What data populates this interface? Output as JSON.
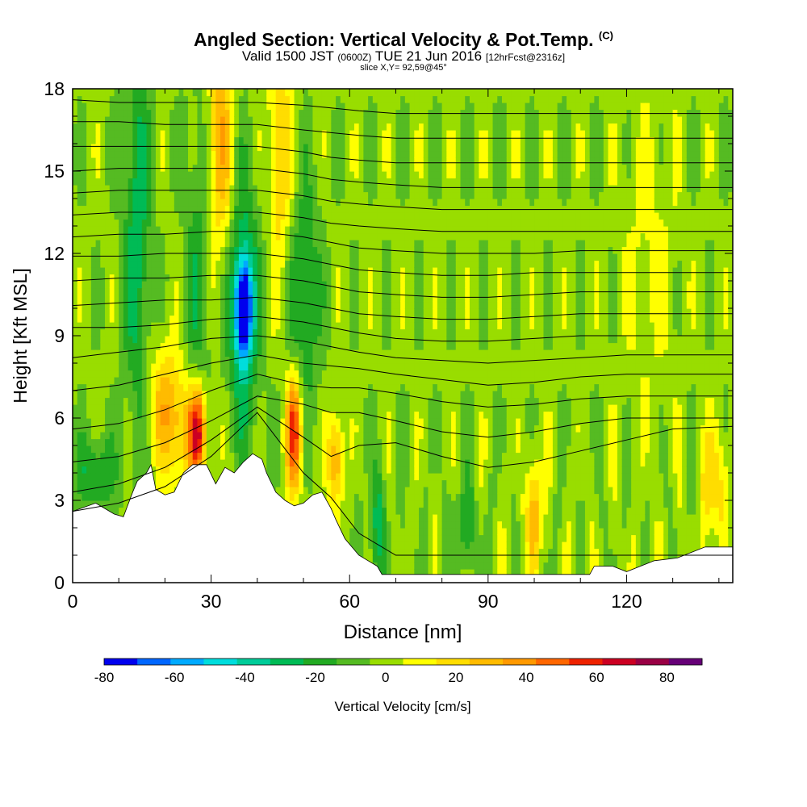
{
  "header": {
    "title": "Angled Section: Vertical Velocity & Pot.Temp.",
    "title_tag": "(C)",
    "valid_prefix": "Valid 1500 JST",
    "valid_z": "(0600Z)",
    "valid_date": "TUE 21 Jun 2016",
    "forecast": "[12hrFcst@2316z]",
    "slice": "slice X,Y= 92,59@45°"
  },
  "colors": {
    "scale": [
      "#0000ee",
      "#0066ff",
      "#00aaff",
      "#00dddd",
      "#00cc99",
      "#00bb55",
      "#22aa22",
      "#55bb22",
      "#99dd00",
      "#ffff00",
      "#ffdd00",
      "#ffbb00",
      "#ff9900",
      "#ff6600",
      "#ee2200",
      "#cc0022",
      "#990044",
      "#660077"
    ],
    "terrain": "#ffffff",
    "contour": "#000000"
  },
  "chart_data": {
    "type": "heatmap",
    "title": "Angled Section: Vertical Velocity & Pot.Temp.",
    "xlabel": "Distance [nm]",
    "ylabel": "Height [Kft MSL]",
    "xlim": [
      0,
      143
    ],
    "ylim": [
      0,
      18
    ],
    "xticks": [
      0,
      30,
      60,
      90,
      120
    ],
    "yticks": [
      0,
      3,
      6,
      9,
      12,
      15,
      18
    ],
    "colorbar": {
      "label": "Vertical Velocity [cm/s]",
      "min": -80,
      "max": 90,
      "step": 10,
      "ticks": [
        -80,
        -60,
        -40,
        -20,
        0,
        20,
        40,
        60,
        80
      ]
    },
    "terrain_top_kft": [
      [
        0,
        2.6
      ],
      [
        5,
        2.9
      ],
      [
        9,
        2.5
      ],
      [
        11,
        2.4
      ],
      [
        13,
        3.3
      ],
      [
        14,
        3.7
      ],
      [
        16,
        4.0
      ],
      [
        17,
        4.3
      ],
      [
        18,
        3.4
      ],
      [
        20,
        3.2
      ],
      [
        22,
        3.3
      ],
      [
        24,
        4.0
      ],
      [
        26,
        4.3
      ],
      [
        29,
        4.3
      ],
      [
        31,
        3.6
      ],
      [
        33,
        4.2
      ],
      [
        35,
        4.0
      ],
      [
        37,
        4.4
      ],
      [
        39,
        4.7
      ],
      [
        41,
        4.5
      ],
      [
        42,
        4.0
      ],
      [
        44,
        3.3
      ],
      [
        46,
        3.0
      ],
      [
        48,
        2.8
      ],
      [
        50,
        2.9
      ],
      [
        52,
        3.2
      ],
      [
        54,
        3.3
      ],
      [
        56,
        2.7
      ],
      [
        57,
        2.3
      ],
      [
        59,
        1.6
      ],
      [
        62,
        1.0
      ],
      [
        64,
        0.8
      ],
      [
        66,
        0.6
      ],
      [
        67,
        0.3
      ],
      [
        78,
        0.3
      ],
      [
        90,
        0.3
      ],
      [
        112,
        0.3
      ],
      [
        113,
        0.6
      ],
      [
        117,
        0.6
      ],
      [
        120,
        0.4
      ],
      [
        126,
        0.8
      ],
      [
        131,
        0.9
      ],
      [
        137,
        1.3
      ],
      [
        143,
        1.3
      ]
    ],
    "theta_contours_kft": [
      [
        2.6,
        2.9,
        3.5,
        4.6,
        6.2,
        4.0,
        3.1,
        1.8,
        1.0,
        1.0,
        1.0,
        1.0,
        1.0,
        1.0,
        1.0,
        1.0
      ],
      [
        3.3,
        3.6,
        4.2,
        5.2,
        6.4,
        5.3,
        4.6,
        5.0,
        5.1,
        4.6,
        4.2,
        4.4,
        4.8,
        5.2,
        5.6,
        5.7
      ],
      [
        4.4,
        4.6,
        5.1,
        5.9,
        6.8,
        6.5,
        6.2,
        6.2,
        5.9,
        5.5,
        5.3,
        5.5,
        5.8,
        6.0,
        6.0,
        6.0
      ],
      [
        5.6,
        5.8,
        6.3,
        7.0,
        7.6,
        7.2,
        7.1,
        7.1,
        6.9,
        6.6,
        6.4,
        6.5,
        6.7,
        6.8,
        6.8,
        6.8
      ],
      [
        7.0,
        7.2,
        7.6,
        8.0,
        8.3,
        8.0,
        7.9,
        7.8,
        7.6,
        7.4,
        7.2,
        7.3,
        7.5,
        7.6,
        7.6,
        7.6
      ],
      [
        8.2,
        8.4,
        8.6,
        8.9,
        9.0,
        8.8,
        8.6,
        8.4,
        8.2,
        8.1,
        8.0,
        8.1,
        8.2,
        8.3,
        8.3,
        8.3
      ],
      [
        9.3,
        9.3,
        9.4,
        9.6,
        9.7,
        9.5,
        9.3,
        9.1,
        8.9,
        8.8,
        8.8,
        8.9,
        9.0,
        9.0,
        9.0,
        9.0
      ],
      [
        10.1,
        10.2,
        10.3,
        10.3,
        10.4,
        10.2,
        10.0,
        9.8,
        9.7,
        9.6,
        9.6,
        9.7,
        9.8,
        9.8,
        9.8,
        9.8
      ],
      [
        11.0,
        11.1,
        11.1,
        11.2,
        11.2,
        11.0,
        10.8,
        10.6,
        10.5,
        10.4,
        10.4,
        10.5,
        10.6,
        10.6,
        10.6,
        10.6
      ],
      [
        11.9,
        11.9,
        12.0,
        12.0,
        12.0,
        11.8,
        11.6,
        11.4,
        11.3,
        11.2,
        11.2,
        11.3,
        11.3,
        11.3,
        11.3,
        11.3
      ],
      [
        12.6,
        12.7,
        12.7,
        12.8,
        12.8,
        12.6,
        12.4,
        12.2,
        12.1,
        12.0,
        12.0,
        12.0,
        12.1,
        12.1,
        12.1,
        12.1
      ],
      [
        13.4,
        13.5,
        13.5,
        13.5,
        13.5,
        13.3,
        13.1,
        13.0,
        12.9,
        12.8,
        12.8,
        12.8,
        12.8,
        12.8,
        12.8,
        12.8
      ],
      [
        14.2,
        14.3,
        14.3,
        14.3,
        14.3,
        14.1,
        13.9,
        13.8,
        13.7,
        13.6,
        13.6,
        13.6,
        13.6,
        13.6,
        13.6,
        13.6
      ],
      [
        15.0,
        15.1,
        15.1,
        15.1,
        15.1,
        14.9,
        14.7,
        14.6,
        14.5,
        14.4,
        14.4,
        14.4,
        14.4,
        14.4,
        14.4,
        14.4
      ],
      [
        15.9,
        15.9,
        15.9,
        15.9,
        15.9,
        15.7,
        15.5,
        15.4,
        15.3,
        15.3,
        15.3,
        15.3,
        15.3,
        15.3,
        15.3,
        15.3
      ],
      [
        16.8,
        16.8,
        16.7,
        16.7,
        16.7,
        16.5,
        16.4,
        16.3,
        16.2,
        16.2,
        16.2,
        16.2,
        16.2,
        16.2,
        16.2,
        16.2
      ],
      [
        17.6,
        17.5,
        17.5,
        17.5,
        17.5,
        17.4,
        17.3,
        17.2,
        17.1,
        17.1,
        17.1,
        17.1,
        17.1,
        17.1,
        17.1,
        17.1
      ]
    ],
    "theta_contours_x_nm": [
      0,
      10,
      20,
      30,
      40,
      50,
      56,
      62,
      70,
      80,
      90,
      100,
      110,
      120,
      130,
      143
    ],
    "velocity_features": [
      {
        "x": 37,
        "y": 10.0,
        "sx": 1.2,
        "sy": 1.2,
        "w": -80
      },
      {
        "x": 37,
        "y": 10.0,
        "sx": 2.5,
        "sy": 3.5,
        "w": -35
      },
      {
        "x": 27,
        "y": 10.5,
        "sx": 2.0,
        "sy": 5.0,
        "w": -20
      },
      {
        "x": 14,
        "y": 12.5,
        "sx": 2.0,
        "sy": 5.0,
        "w": -30
      },
      {
        "x": 50,
        "y": 10.5,
        "sx": 2.5,
        "sy": 3.0,
        "w": -25
      },
      {
        "x": 5,
        "y": 4.0,
        "sx": 3.0,
        "sy": 1.0,
        "w": -25
      },
      {
        "x": 66,
        "y": 2.0,
        "sx": 1.5,
        "sy": 1.5,
        "w": -25
      },
      {
        "x": 85,
        "y": 2.0,
        "sx": 2.0,
        "sy": 1.2,
        "w": -20
      },
      {
        "x": 27,
        "y": 5.5,
        "sx": 1.2,
        "sy": 1.2,
        "w": 60
      },
      {
        "x": 24,
        "y": 5.5,
        "sx": 4.0,
        "sy": 1.5,
        "w": 30
      },
      {
        "x": 48,
        "y": 5.5,
        "sx": 1.2,
        "sy": 1.5,
        "w": 65
      },
      {
        "x": 32,
        "y": 16.0,
        "sx": 2.0,
        "sy": 3.0,
        "w": 35
      },
      {
        "x": 45,
        "y": 15.5,
        "sx": 2.0,
        "sy": 3.5,
        "w": 25
      },
      {
        "x": 100,
        "y": 2.5,
        "sx": 1.0,
        "sy": 1.5,
        "w": 40
      },
      {
        "x": 57,
        "y": 4.5,
        "sx": 1.2,
        "sy": 1.2,
        "w": 40
      },
      {
        "x": 125,
        "y": 12.0,
        "sx": 4.0,
        "sy": 4.0,
        "w": 10
      },
      {
        "x": 20,
        "y": 7.0,
        "sx": 2.5,
        "sy": 1.5,
        "w": 20
      },
      {
        "x": 139,
        "y": 3.5,
        "sx": 2.0,
        "sy": 1.5,
        "w": 25
      }
    ]
  },
  "axes": {
    "x_title": "Distance [nm]",
    "y_title": "Height [Kft MSL]",
    "colorbar_label": "Vertical Velocity [cm/s]"
  }
}
